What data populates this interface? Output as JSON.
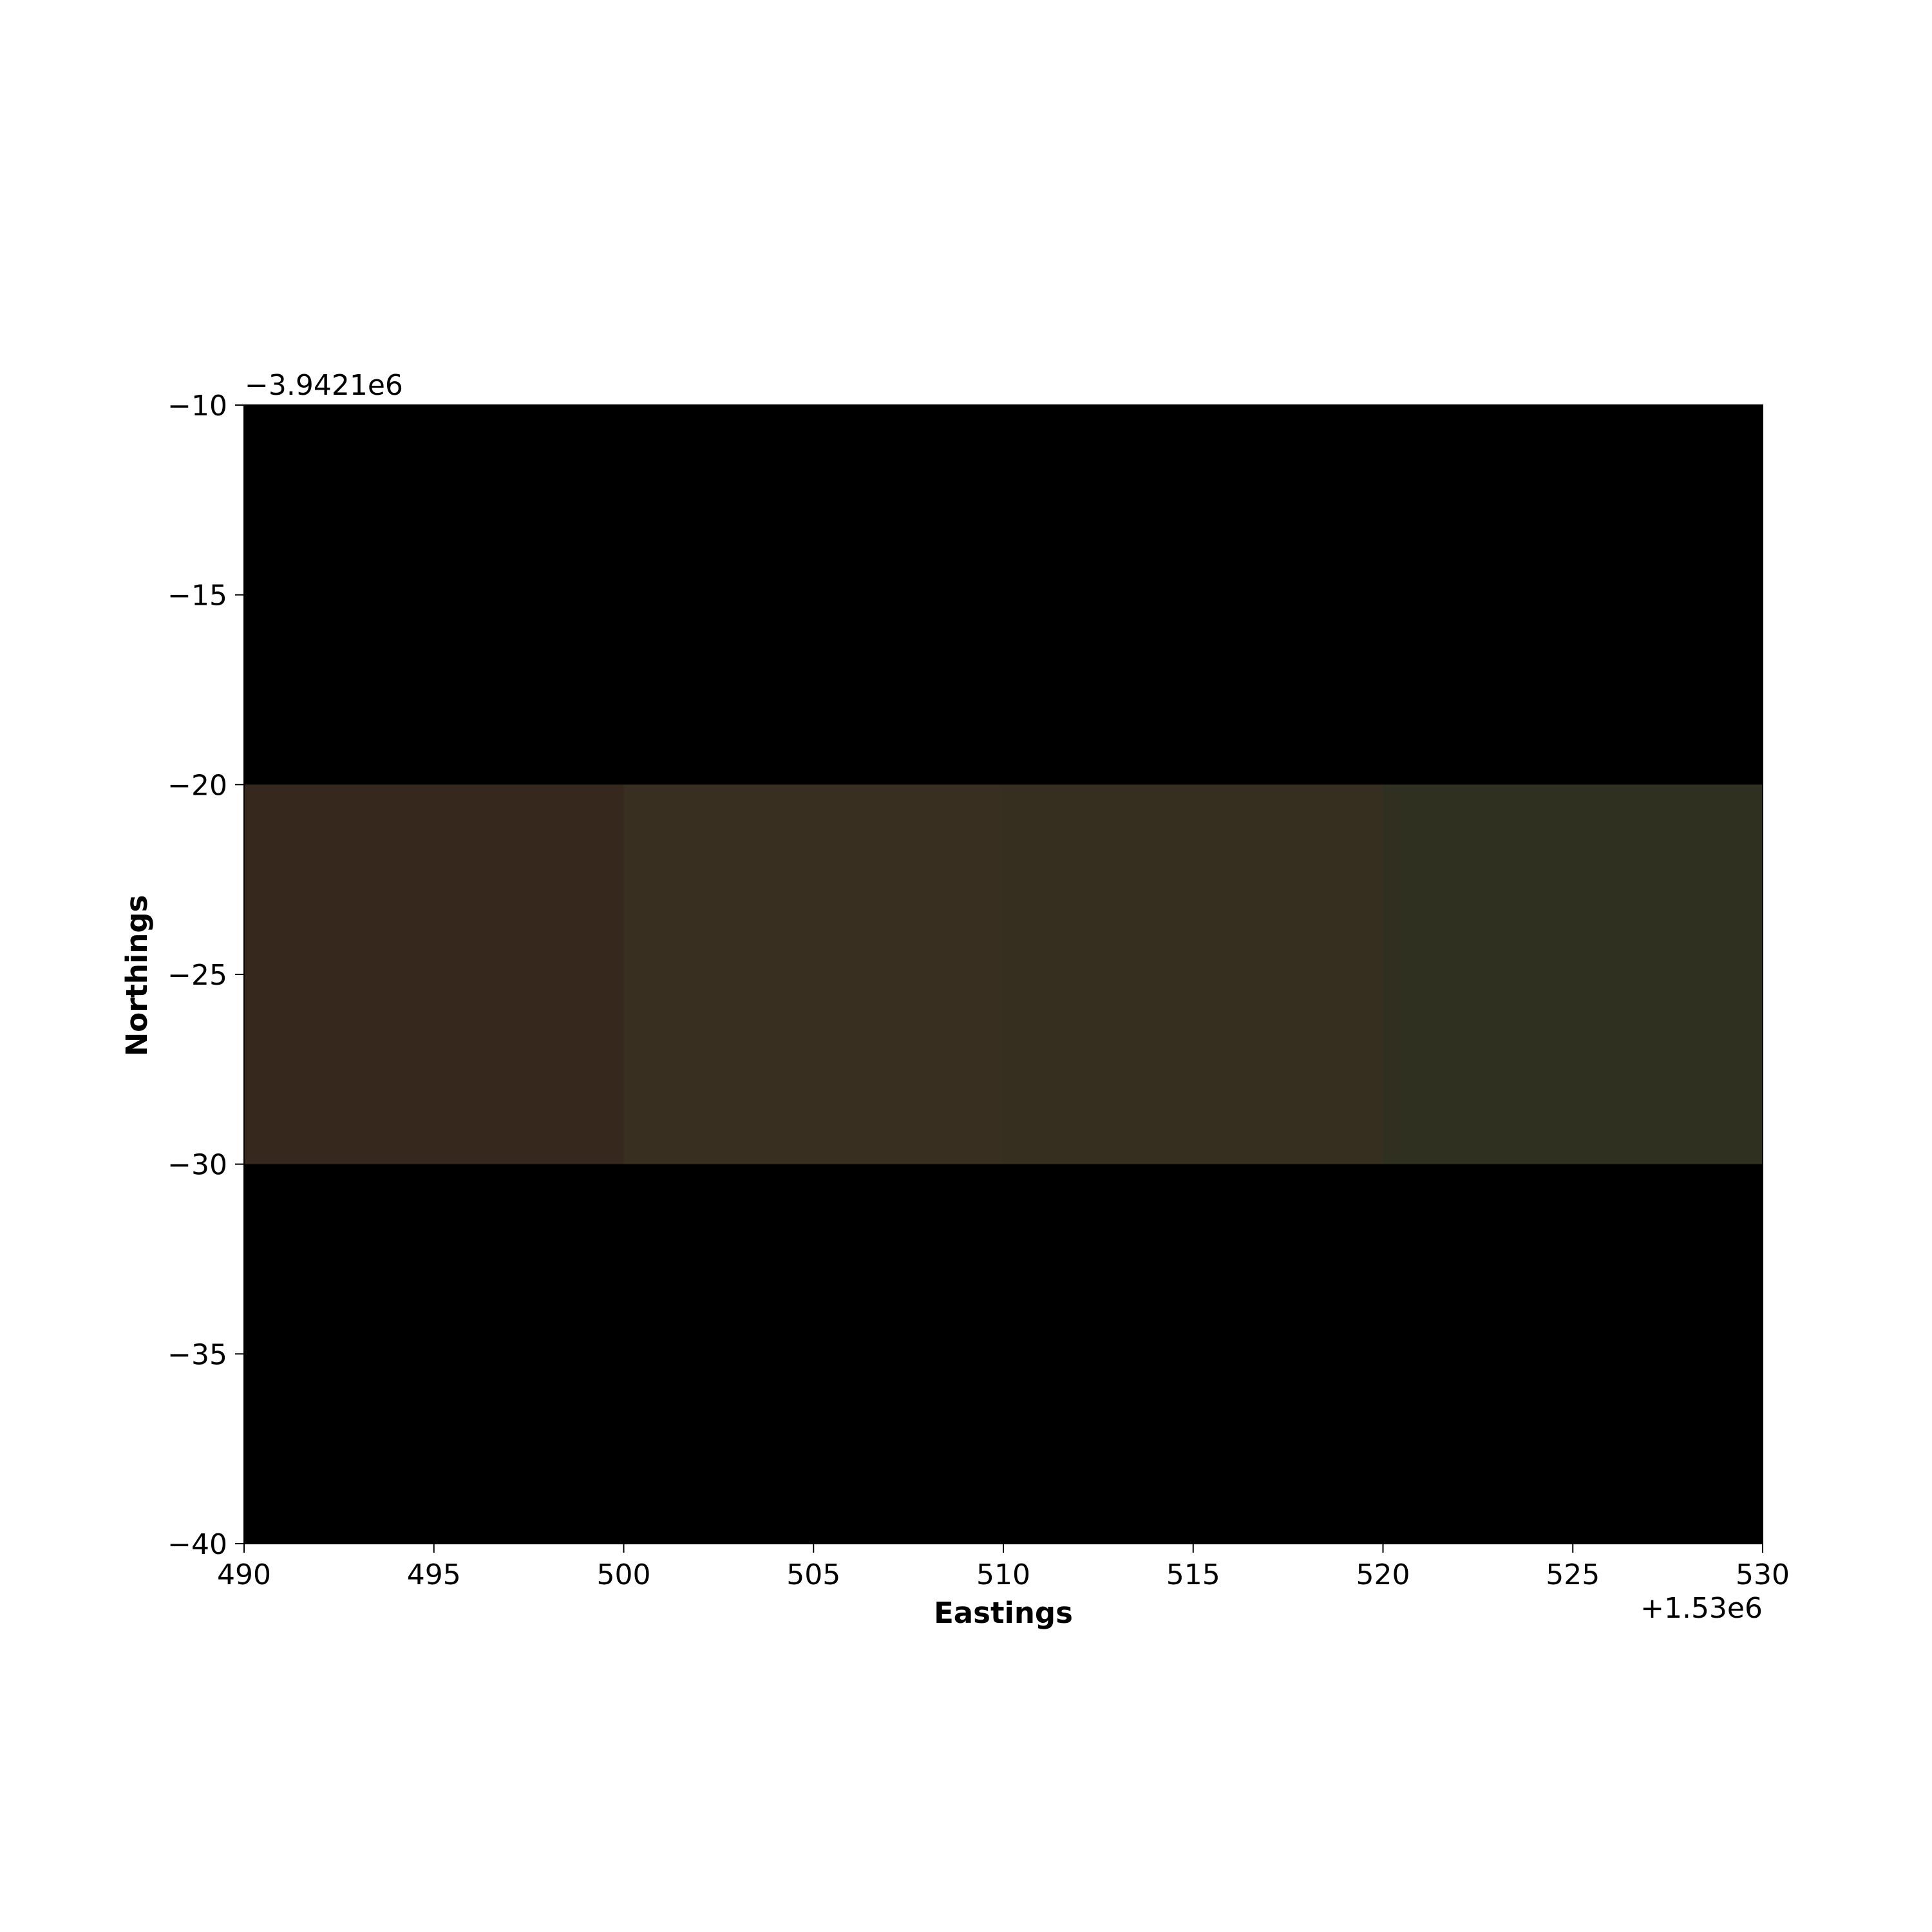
{
  "chart_data": {
    "type": "heatmap",
    "title": "",
    "xlabel": "Eastings",
    "ylabel": "Northings",
    "x_offset_label": "+1.53e6",
    "y_offset_label": "−3.9421e6",
    "xlim": [
      490,
      530
    ],
    "ylim": [
      -40,
      -10
    ],
    "x_ticks": [
      490,
      495,
      500,
      505,
      510,
      515,
      520,
      525,
      530
    ],
    "x_tick_labels": [
      "490",
      "495",
      "500",
      "505",
      "510",
      "515",
      "520",
      "525",
      "530"
    ],
    "y_ticks": [
      -10,
      -15,
      -20,
      -25,
      -30,
      -35,
      -40
    ],
    "y_tick_labels": [
      "−10",
      "−15",
      "−20",
      "−25",
      "−30",
      "−35",
      "−40"
    ],
    "background_color": "#000000",
    "cells": [
      {
        "x0": 490,
        "x1": 500,
        "y0": -30,
        "y1": -20,
        "color": "#37281d"
      },
      {
        "x0": 500,
        "x1": 510,
        "y0": -30,
        "y1": -20,
        "color": "#382f20"
      },
      {
        "x0": 510,
        "x1": 520,
        "y0": -30,
        "y1": -20,
        "color": "#362f1f"
      },
      {
        "x0": 520,
        "x1": 530,
        "y0": -30,
        "y1": -20,
        "color": "#2f301f"
      }
    ]
  }
}
